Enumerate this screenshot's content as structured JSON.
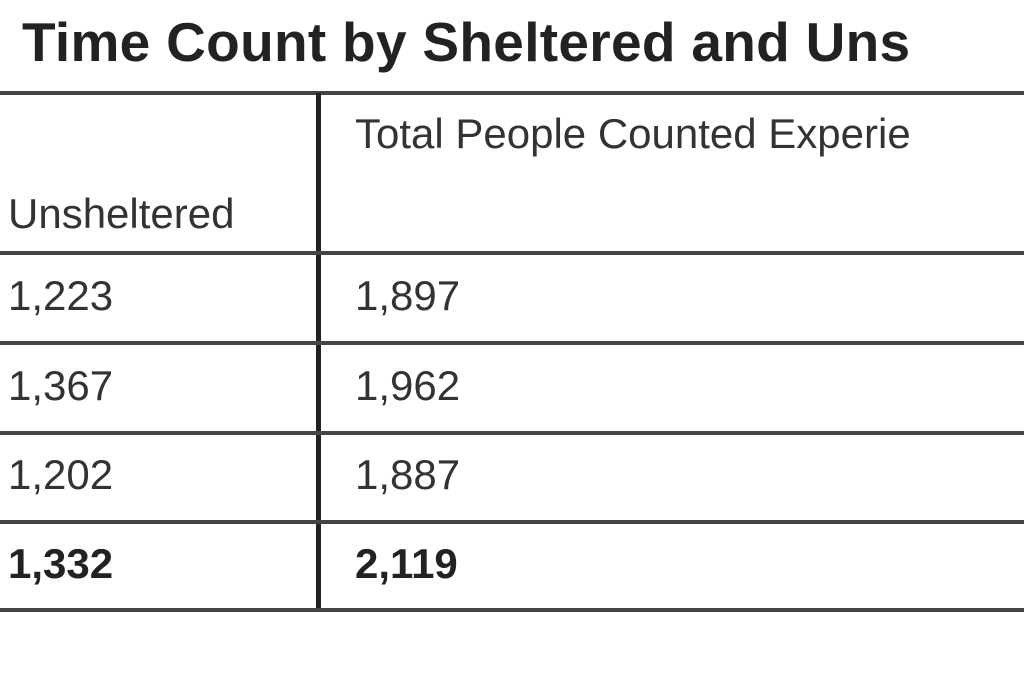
{
  "title": "Time Count by Sheltered and Uns",
  "table": {
    "headers": [
      "Unsheltered",
      "Total People Counted Experie"
    ],
    "rows": [
      [
        "1,223",
        "1,897"
      ],
      [
        "1,367",
        "1,962"
      ],
      [
        "1,202",
        "1,887"
      ]
    ],
    "total_row": [
      "1,332",
      "2,119"
    ]
  }
}
